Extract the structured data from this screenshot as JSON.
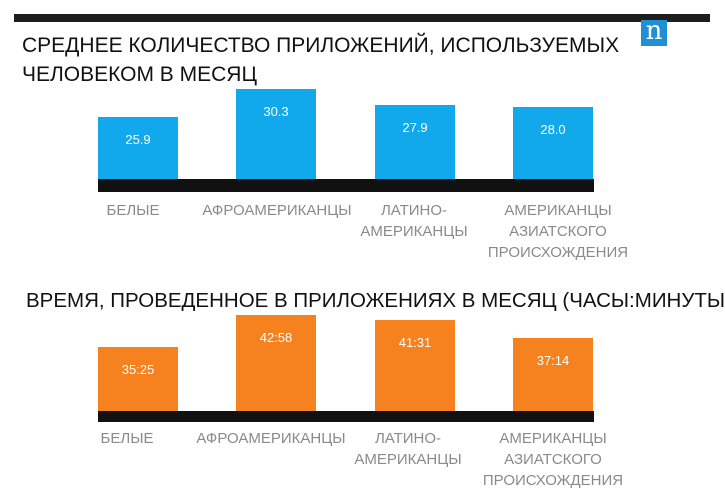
{
  "logo_letter": "n",
  "chart_data": [
    {
      "type": "bar",
      "title": "СРЕДНЕЕ КОЛИЧЕСТВО ПРИЛОЖЕНИЙ, ИСПОЛЬЗУЕМЫХ ЧЕЛОВЕКОМ В МЕСЯЦ",
      "categories": [
        "БЕЛЫЕ",
        "АФРОАМЕРИКАНЦЫ",
        "ЛАТИНО-АМЕРИКАНЦЫ",
        "АМЕРИКАНЦЫ АЗИАТСКОГО ПРОИСХОЖДЕНИЯ"
      ],
      "category_lines": [
        [
          "БЕЛЫЕ"
        ],
        [
          "АФРОАМЕРИКАНЦЫ"
        ],
        [
          "ЛАТИНО-",
          "АМЕРИКАНЦЫ"
        ],
        [
          "АМЕРИКАНЦЫ",
          "АЗИАТСКОГО",
          "ПРОИСХОЖДЕНИЯ"
        ]
      ],
      "values": [
        25.9,
        30.3,
        27.9,
        28.0
      ],
      "labels": [
        "25.9",
        "30.3",
        "27.9",
        "28.0"
      ],
      "color": "#12a9ec",
      "baseline_color": "#111111"
    },
    {
      "type": "bar",
      "title": "ВРЕМЯ, ПРОВЕДЕННОЕ В ПРИЛОЖЕНИЯХ В МЕСЯЦ (ЧАСЫ:МИНУТЫ)",
      "categories": [
        "БЕЛЫЕ",
        "АФРОАМЕРИКАНЦЫ",
        "ЛАТИНО-АМЕРИКАНЦЫ",
        "АМЕРИКАНЦЫ АЗИАТСКОГО ПРОИСХОЖДЕНИЯ"
      ],
      "category_lines": [
        [
          "БЕЛЫЕ"
        ],
        [
          "АФРОАМЕРИКАНЦЫ"
        ],
        [
          "ЛАТИНО-",
          "АМЕРИКАНЦЫ"
        ],
        [
          "АМЕРИКАНЦЫ",
          "АЗИАТСКОГО",
          "ПРОИСХОЖДЕНИЯ"
        ]
      ],
      "values": [
        35.42,
        42.97,
        41.52,
        37.23
      ],
      "labels": [
        "35:25",
        "42:58",
        "41:31",
        "37:14"
      ],
      "color": "#f5821f",
      "baseline_color": "#111111"
    }
  ]
}
